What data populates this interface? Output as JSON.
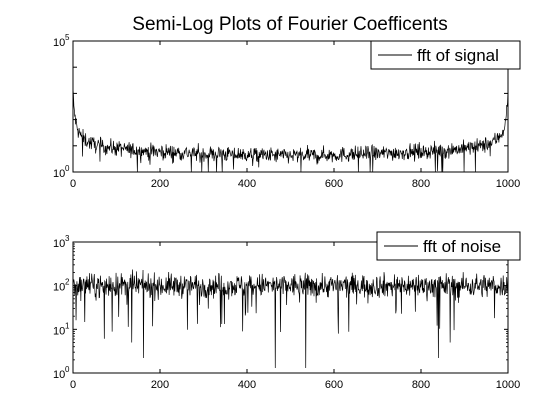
{
  "chart_data": [
    {
      "type": "line",
      "title": "Semi-Log Plots of Fourier Coefficents",
      "xlabel": "",
      "ylabel": "",
      "yscale": "log",
      "xlim": [
        0,
        1000
      ],
      "ylim_exponents": [
        0,
        5
      ],
      "x_ticks": [
        "0",
        "200",
        "400",
        "600",
        "800",
        "1000"
      ],
      "y_tick_base": "10",
      "y_tick_exponents": [
        "0",
        "5"
      ],
      "legend": {
        "position": "top-right",
        "entries": [
          "fft of signal"
        ]
      },
      "series": [
        {
          "name": "fft of signal",
          "color": "#000000",
          "x": [
            0,
            2,
            5,
            10,
            20,
            30,
            40,
            50,
            75,
            100,
            150,
            200,
            250,
            300,
            350,
            400,
            450,
            500,
            550,
            600,
            650,
            700,
            750,
            800,
            850,
            900,
            925,
            950,
            960,
            970,
            980,
            990,
            995,
            998,
            1000
          ],
          "y": [
            1500,
            320,
            110,
            40,
            22,
            16,
            13,
            11,
            9,
            8,
            6.5,
            6,
            5.5,
            5,
            4.8,
            4.5,
            4.3,
            4.2,
            4.3,
            4.5,
            4.8,
            5,
            5.5,
            6,
            6.5,
            8,
            9,
            11,
            13,
            16,
            22,
            40,
            110,
            320,
            1500
          ],
          "noise_scatter_decades": 0.3
        }
      ]
    },
    {
      "type": "line",
      "title": "",
      "xlabel": "",
      "ylabel": "",
      "yscale": "log",
      "xlim": [
        0,
        1000
      ],
      "ylim_exponents": [
        0,
        3
      ],
      "x_ticks": [
        "0",
        "200",
        "400",
        "600",
        "800",
        "1000"
      ],
      "y_tick_base": "10",
      "y_tick_exponents": [
        "0",
        "1",
        "2",
        "3"
      ],
      "legend": {
        "position": "top-right",
        "entries": [
          "fft of noise"
        ]
      },
      "series": [
        {
          "name": "fft of noise",
          "color": "#000000",
          "typical_level": 100,
          "noise_scatter_decades": 0.25,
          "deep_dips": [
            {
              "x": 135,
              "y": 5
            },
            {
              "x": 162,
              "y": 2.2
            },
            {
              "x": 390,
              "y": 9
            },
            {
              "x": 465,
              "y": 1.3
            },
            {
              "x": 535,
              "y": 1.3
            },
            {
              "x": 610,
              "y": 8
            },
            {
              "x": 840,
              "y": 2.2
            },
            {
              "x": 867,
              "y": 5
            }
          ]
        }
      ]
    }
  ]
}
